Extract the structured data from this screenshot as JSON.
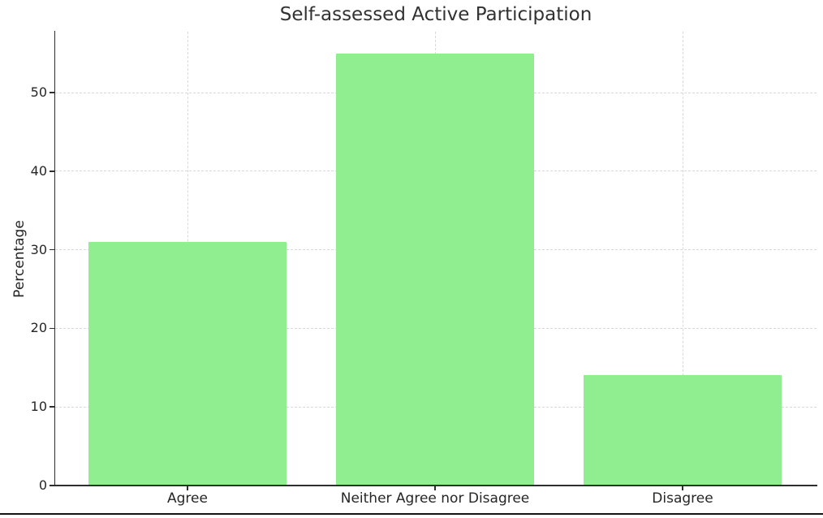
{
  "chart_data": {
    "type": "bar",
    "title": "Self-assessed Active Participation",
    "categories": [
      "Agree",
      "Neither Agree nor Disagree",
      "Disagree"
    ],
    "values": [
      31,
      55,
      14
    ],
    "xlabel": "",
    "ylabel": "Percentage",
    "yticks": [
      0,
      10,
      20,
      30,
      40,
      50
    ],
    "ylim": [
      0,
      57.75
    ],
    "bar_color": "#90EE90",
    "grid": {
      "horizontal": true,
      "vertical": true,
      "style": "dashed",
      "color": "#d9d9d9"
    },
    "legend_position": "none",
    "spines": {
      "top": false,
      "right": false,
      "left": true,
      "bottom": true
    }
  },
  "page": {
    "bottom_rule_color": "#141414"
  }
}
